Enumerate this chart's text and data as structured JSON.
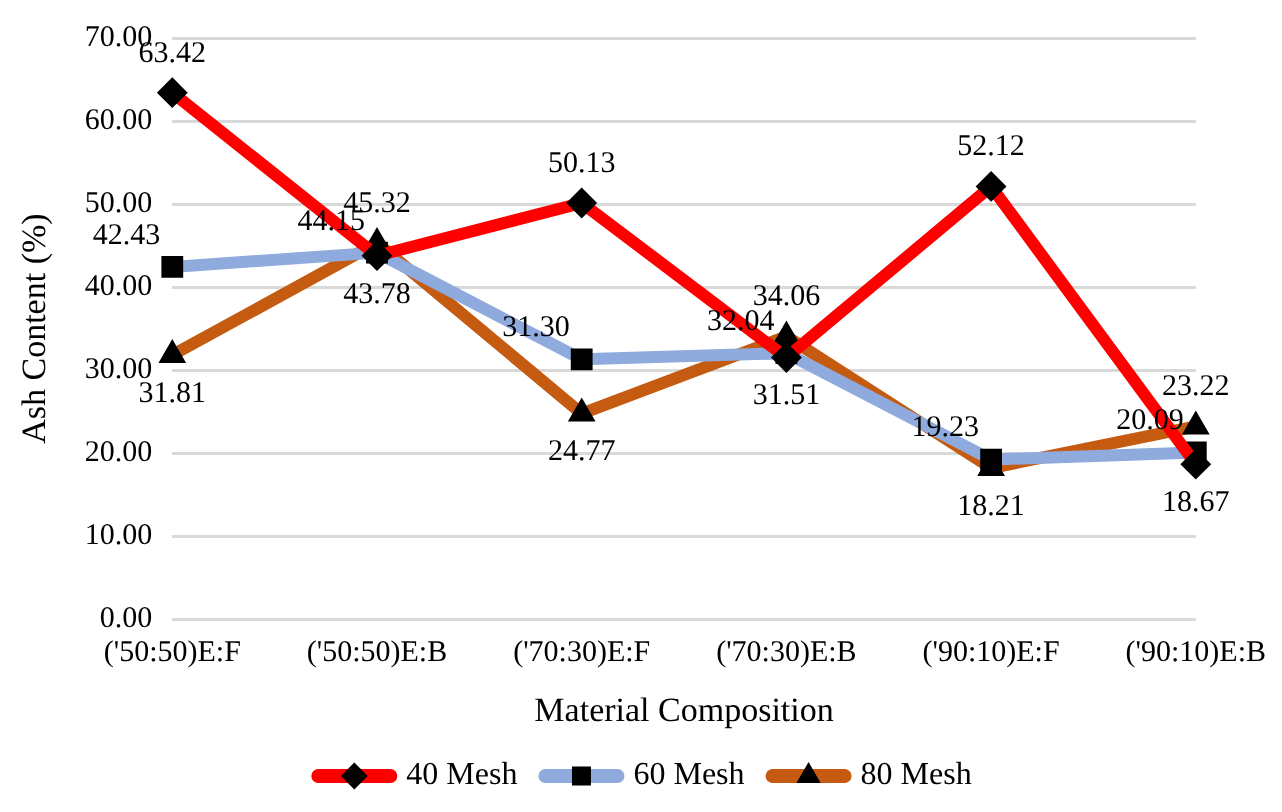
{
  "chart_data": {
    "type": "line",
    "xlabel": "Material Composition",
    "ylabel": "Ash Content (%)",
    "categories": [
      "('50:50)E:F",
      "('50:50)E:B",
      "('70:30)E:F",
      "('70:30)E:B",
      "('90:10)E:F",
      "('90:10)E:B"
    ],
    "series": [
      {
        "name": "40 Mesh",
        "color": "#ff0000",
        "marker": "diamond",
        "values": [
          63.42,
          43.78,
          50.13,
          31.51,
          52.12,
          18.67
        ],
        "value_labels": [
          "63.42",
          "43.78",
          "50.13",
          "31.51",
          "52.12",
          "18.67"
        ]
      },
      {
        "name": "60 Mesh",
        "color": "#8faadc",
        "marker": "square",
        "values": [
          42.43,
          44.15,
          31.3,
          32.04,
          19.23,
          20.09
        ],
        "value_labels": [
          "42.43",
          "44.15",
          "31.30",
          "32.04",
          "19.23",
          "20.09"
        ]
      },
      {
        "name": "80 Mesh",
        "color": "#c55a11",
        "marker": "triangle",
        "values": [
          31.81,
          45.32,
          24.77,
          34.06,
          18.21,
          23.22
        ],
        "value_labels": [
          "31.81",
          "45.32",
          "24.77",
          "34.06",
          "18.21",
          "23.22"
        ]
      }
    ],
    "ylim": [
      0,
      70
    ],
    "yticks": [
      {
        "value": 0,
        "label": "0.00"
      },
      {
        "value": 10,
        "label": "10.00"
      },
      {
        "value": 20,
        "label": "20.00"
      },
      {
        "value": 30,
        "label": "30.00"
      },
      {
        "value": 40,
        "label": "40.00"
      },
      {
        "value": 50,
        "label": "50.00"
      },
      {
        "value": 60,
        "label": "60.00"
      },
      {
        "value": 70,
        "label": "70.00"
      }
    ],
    "grid": "y",
    "legend": "bottom"
  }
}
